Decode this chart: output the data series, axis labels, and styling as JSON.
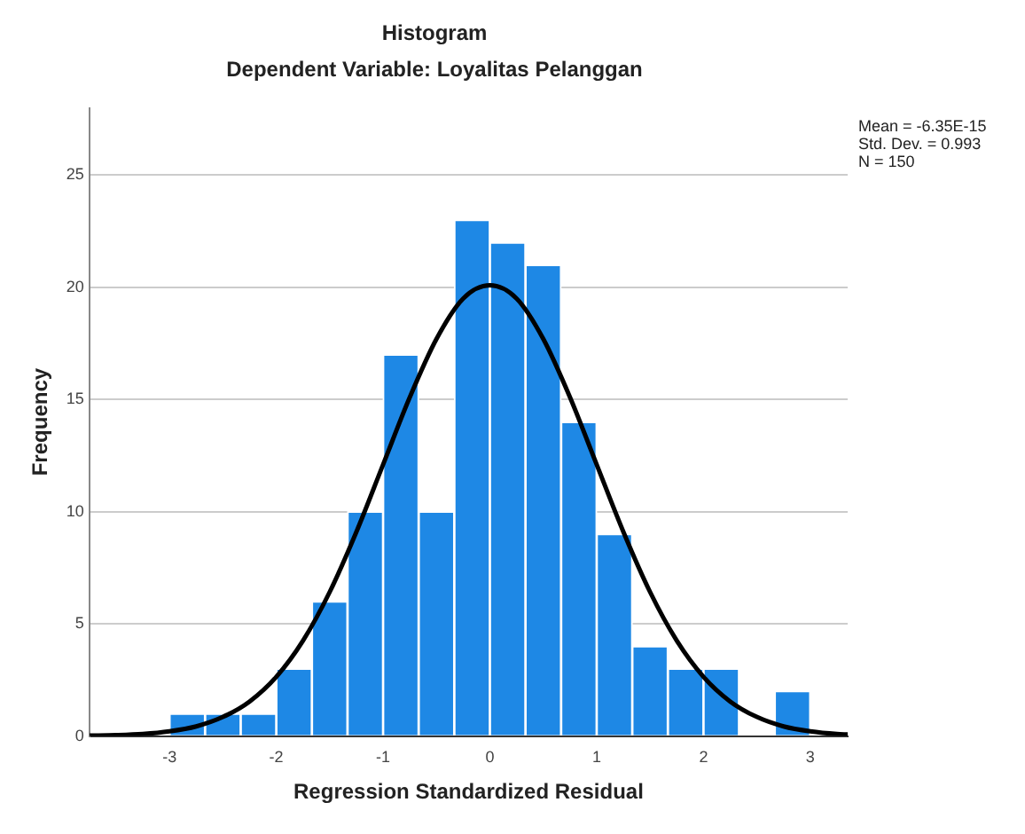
{
  "chart_data": {
    "type": "histogram",
    "title": "Histogram",
    "subtitle": "Dependent Variable: Loyalitas Pelanggan",
    "xlabel": "Regression Standardized Residual",
    "ylabel": "Frequency",
    "bins": [
      -3,
      -2.667,
      -2.333,
      -2,
      -1.667,
      -1.333,
      -1,
      -0.667,
      -0.333,
      0,
      0.333,
      0.667,
      1,
      1.333,
      1.667,
      2,
      2.333,
      2.667,
      3
    ],
    "values": [
      1,
      1,
      1,
      3,
      6,
      10,
      17,
      10,
      23,
      22,
      21,
      14,
      9,
      4,
      3,
      3,
      0,
      2
    ],
    "color": "#1e88e5",
    "series": [
      {
        "type": "line",
        "color": "#000000",
        "x": [
          -3.75,
          -3.5,
          -3.25,
          -3,
          -2.75,
          -2.5,
          -2.25,
          -2,
          -1.75,
          -1.5,
          -1.25,
          -1,
          -0.75,
          -0.5,
          -0.25,
          0,
          0.25,
          0.5,
          0.75,
          1,
          1.25,
          1.5,
          1.75,
          2,
          2.25,
          2.5,
          2.75,
          3,
          3.25,
          3.35
        ],
        "values": [
          0.02,
          0.04,
          0.09,
          0.21,
          0.43,
          0.85,
          1.54,
          2.64,
          4.25,
          6.42,
          9.1,
          12.1,
          15.1,
          17.7,
          19.5,
          20.09,
          19.5,
          17.7,
          15.1,
          12.1,
          9.1,
          6.42,
          4.25,
          2.64,
          1.54,
          0.85,
          0.43,
          0.21,
          0.09,
          0.07
        ]
      }
    ],
    "xlim": [
      -3.75,
      3.35
    ],
    "xticks": [
      -3,
      -2,
      -1,
      0,
      1,
      2,
      3
    ],
    "ylim": [
      0,
      28
    ],
    "yticks": [
      0,
      5,
      10,
      15,
      20,
      25
    ],
    "grid": "y",
    "legend": false,
    "annotations": [
      "Mean = -6.35E-15",
      "Std. Dev. = 0.993",
      "N = 150"
    ]
  }
}
